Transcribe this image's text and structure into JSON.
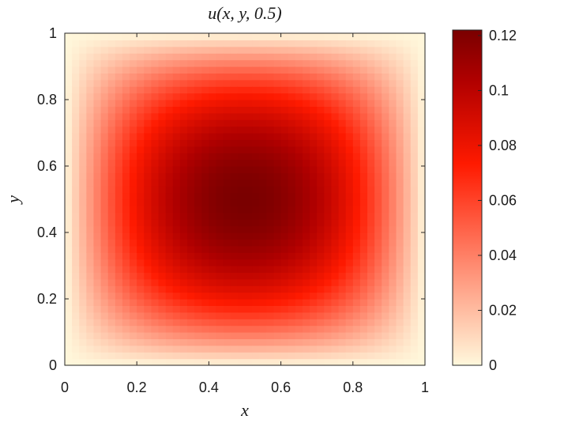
{
  "chart_data": {
    "type": "heatmap",
    "title": "u(x, y, 0.5)",
    "xlabel": "x",
    "ylabel": "y",
    "xlim": [
      0,
      1
    ],
    "ylim": [
      0,
      1
    ],
    "x_ticks": [
      "0",
      "0.2",
      "0.4",
      "0.6",
      "0.8",
      "1"
    ],
    "y_ticks": [
      "0",
      "0.2",
      "0.4",
      "0.6",
      "0.8",
      "1"
    ],
    "colorbar": {
      "range": [
        0,
        0.122
      ],
      "ticks": [
        "0",
        "0.02",
        "0.04",
        "0.06",
        "0.08",
        "0.1",
        "0.12"
      ],
      "colormap": [
        "#fff8dc",
        "#ff8a70",
        "#ff1a00",
        "#b00000",
        "#7a0000"
      ]
    },
    "surface": {
      "function": "peak * 16 * x*(1-x) * y*(1-y)",
      "peak": 0.122,
      "peak_location": [
        0.5,
        0.5
      ],
      "boundary_value": 0,
      "grid_resolution": 50
    },
    "grid": false
  }
}
